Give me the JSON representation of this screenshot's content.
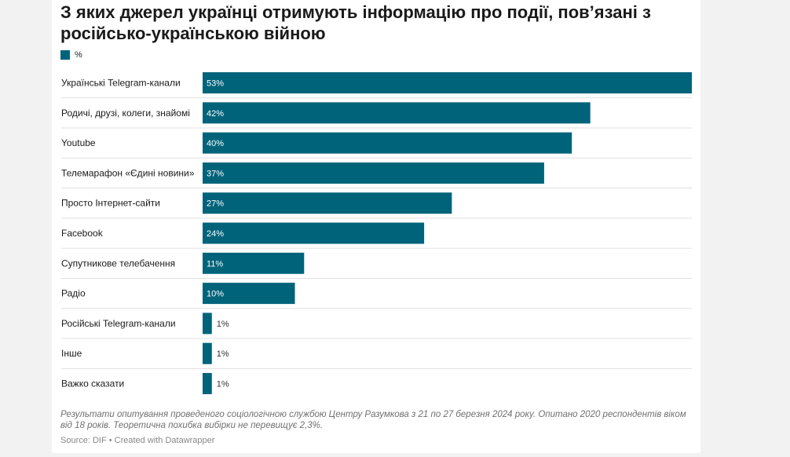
{
  "title": "З яких джерел українці отримують інформацію про події, пов’язані з російсько-українською війною",
  "colors": {
    "bar": "#00637a",
    "row_divider": "#e0e0e0",
    "label_inside": "#ffffff",
    "label_outside": "#333333"
  },
  "chart_data": {
    "type": "bar",
    "orientation": "horizontal",
    "categories": [
      "Українські Telegram-канали",
      "Родичі, друзі, колеги, знайомі",
      "Youtube",
      "Телемарафон «Єдині новини»",
      "Просто Інтернет-сайти",
      "Facebook",
      "Супутникове телебачення",
      "Радіо",
      "Російські Telegram-канали",
      "Інше",
      "Важко сказати"
    ],
    "series": [
      {
        "name": "%",
        "values": [
          53,
          42,
          40,
          37,
          27,
          24,
          11,
          10,
          1,
          1,
          1
        ]
      }
    ],
    "value_labels": [
      "53%",
      "42%",
      "40%",
      "37%",
      "27%",
      "24%",
      "11%",
      "10%",
      "1%",
      "1%",
      "1%"
    ],
    "xlim": [
      0,
      53
    ],
    "legend": "top-left",
    "grid": false
  },
  "notes": "Результати опитування проведеного соціологічною службою Центру Разумкова з 21 по 27 березня 2024 року. Опитано 2020 респондентів віком від 18 років. Теоретична похибка вибірки не перевищує 2,3%.",
  "source": "Source: DIF • Created with Datawrapper"
}
